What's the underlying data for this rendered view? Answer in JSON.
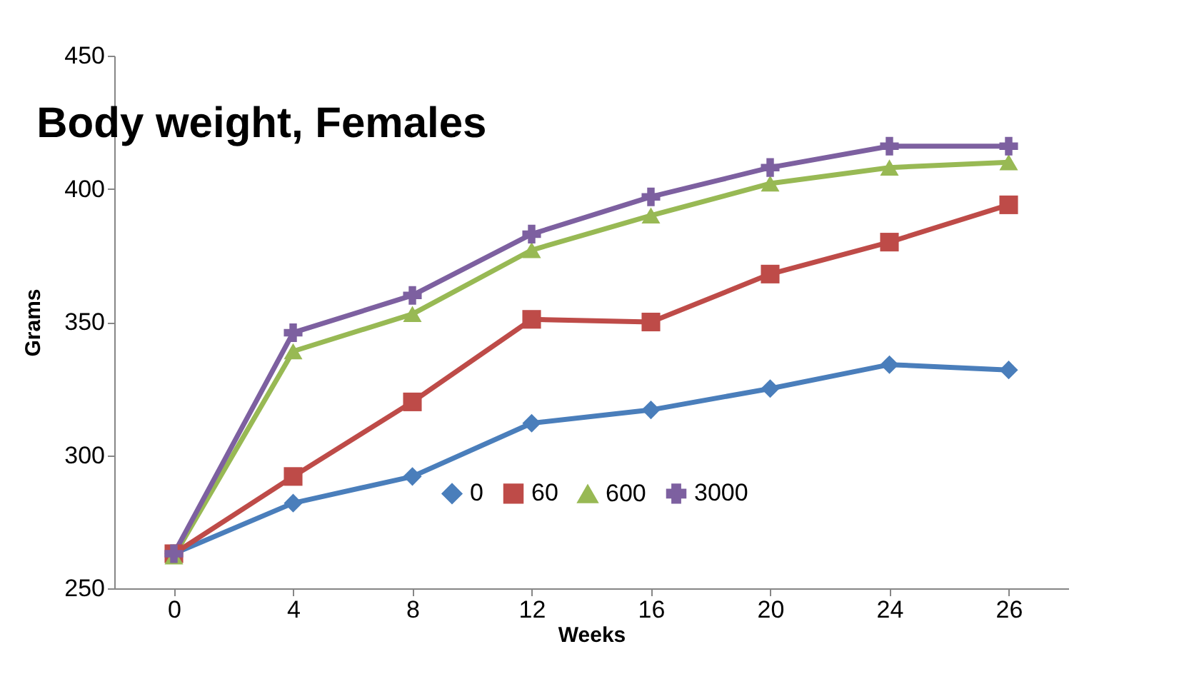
{
  "chart_data": {
    "type": "line",
    "title": "Body weight, Females",
    "xlabel": "Weeks",
    "ylabel": "Grams",
    "categories": [
      "0",
      "4",
      "8",
      "12",
      "16",
      "20",
      "24",
      "26"
    ],
    "series": [
      {
        "name": "0",
        "color": "#4a7ebb",
        "marker": "diamond",
        "values": [
          263,
          282,
          292,
          312,
          317,
          325,
          334,
          332
        ]
      },
      {
        "name": "60",
        "color": "#be4b48",
        "marker": "square",
        "values": [
          263,
          292,
          320,
          351,
          350,
          368,
          380,
          394
        ]
      },
      {
        "name": "600",
        "color": "#98b954",
        "marker": "triangle",
        "values": [
          262,
          339,
          353,
          377,
          390,
          402,
          408,
          410
        ]
      },
      {
        "name": "3000",
        "color": "#7d60a0",
        "marker": "cross",
        "values": [
          263,
          346,
          360,
          383,
          397,
          408,
          416,
          416
        ]
      }
    ],
    "ylim": [
      250,
      450
    ],
    "yticks": [
      250,
      300,
      350,
      400,
      450
    ],
    "grid": false,
    "legend": "bottom right",
    "line_style": "solid"
  }
}
